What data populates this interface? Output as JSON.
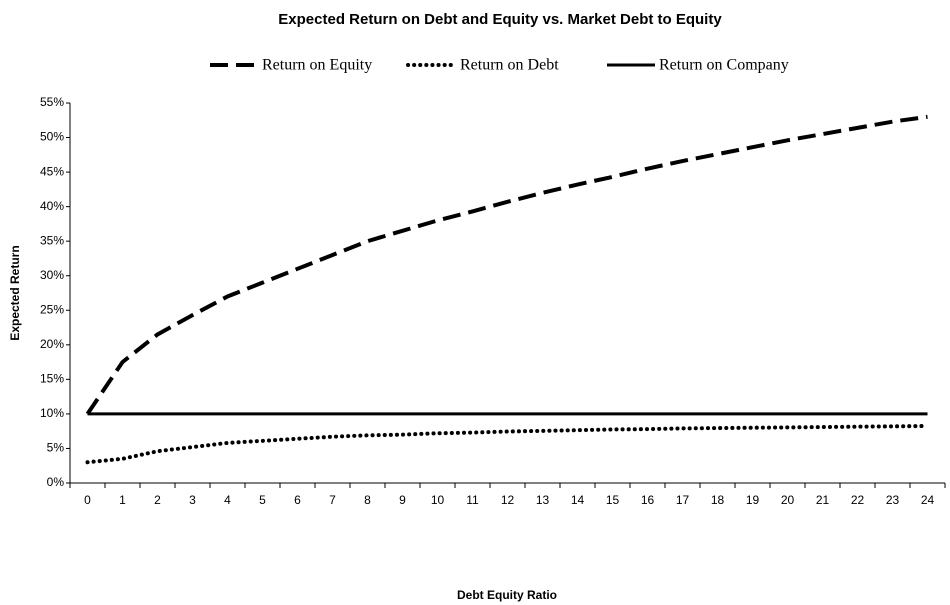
{
  "chart_data": {
    "type": "line",
    "title": "Expected Return on Debt and Equity vs. Market Debt to Equity",
    "x_label": "Debt Equity Ratio",
    "y_label": "Expected Return",
    "categories": [
      "0",
      "1",
      "2",
      "3",
      "4",
      "5",
      "6",
      "7",
      "8",
      "9",
      "10",
      "11",
      "12",
      "13",
      "14",
      "15",
      "16",
      "17",
      "18",
      "19",
      "20",
      "21",
      "22",
      "23",
      "24"
    ],
    "series": [
      {
        "name": "Return on Equity",
        "color": "#000000",
        "dash": "dashed",
        "values": [
          10,
          17.5,
          21.5,
          24.3,
          27,
          29,
          31,
          33,
          35,
          36.5,
          38,
          39.3,
          40.7,
          42,
          43.2,
          44.3,
          45.5,
          46.6,
          47.6,
          48.6,
          49.6,
          50.5,
          51.4,
          52.3,
          53
        ]
      },
      {
        "name": "Return on Debt",
        "color": "#000000",
        "dash": "dotted",
        "values": [
          3,
          3.5,
          4.6,
          5.2,
          5.8,
          6.1,
          6.4,
          6.7,
          6.9,
          7,
          7.2,
          7.3,
          7.45,
          7.55,
          7.65,
          7.75,
          7.8,
          7.9,
          7.95,
          8,
          8.05,
          8.1,
          8.15,
          8.2,
          8.25
        ]
      },
      {
        "name": "Return on Company",
        "color": "#000000",
        "dash": "solid",
        "values": [
          10,
          10,
          10,
          10,
          10,
          10,
          10,
          10,
          10,
          10,
          10,
          10,
          10,
          10,
          10,
          10,
          10,
          10,
          10,
          10,
          10,
          10,
          10,
          10,
          10
        ]
      }
    ],
    "ylim": [
      0,
      55
    ],
    "yticks": [
      {
        "value": 0,
        "label": "0%"
      },
      {
        "value": 5,
        "label": "5%"
      },
      {
        "value": 10,
        "label": "10%"
      },
      {
        "value": 15,
        "label": "15%"
      },
      {
        "value": 20,
        "label": "20%"
      },
      {
        "value": 25,
        "label": "25%"
      },
      {
        "value": 30,
        "label": "30%"
      },
      {
        "value": 35,
        "label": "35%"
      },
      {
        "value": 40,
        "label": "40%"
      },
      {
        "value": 45,
        "label": "45%"
      },
      {
        "value": 50,
        "label": "50%"
      },
      {
        "value": 55,
        "label": "55%"
      }
    ],
    "grid": false,
    "legend": "top"
  }
}
